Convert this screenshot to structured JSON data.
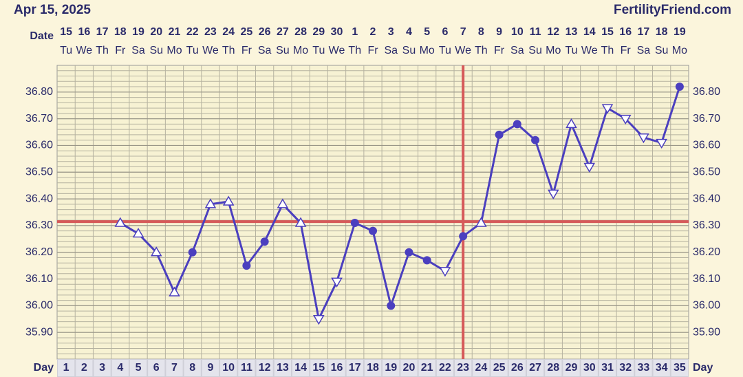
{
  "header": {
    "date": "Apr 15, 2025",
    "site": "FertilityFriend.com"
  },
  "chart_data": {
    "type": "line",
    "date_label": "Date",
    "day_label": "Day",
    "categories": [
      "1",
      "2",
      "3",
      "4",
      "5",
      "6",
      "7",
      "8",
      "9",
      "10",
      "11",
      "12",
      "13",
      "14",
      "15",
      "16",
      "17",
      "18",
      "19",
      "20",
      "21",
      "22",
      "23",
      "24",
      "25",
      "26",
      "27",
      "28",
      "29",
      "30",
      "31",
      "32",
      "33",
      "34",
      "35"
    ],
    "dates": [
      "15",
      "16",
      "17",
      "18",
      "19",
      "20",
      "21",
      "22",
      "23",
      "24",
      "25",
      "26",
      "27",
      "28",
      "29",
      "30",
      "1",
      "2",
      "3",
      "4",
      "5",
      "6",
      "7",
      "8",
      "9",
      "10",
      "11",
      "12",
      "13",
      "14",
      "15",
      "16",
      "17",
      "18",
      "19"
    ],
    "weekdays": [
      "Tu",
      "We",
      "Th",
      "Fr",
      "Sa",
      "Su",
      "Mo",
      "Tu",
      "We",
      "Th",
      "Fr",
      "Sa",
      "Su",
      "Mo",
      "Tu",
      "We",
      "Th",
      "Fr",
      "Sa",
      "Su",
      "Mo",
      "Tu",
      "We",
      "Th",
      "Fr",
      "Sa",
      "Su",
      "Mo",
      "Tu",
      "We",
      "Th",
      "Fr",
      "Sa",
      "Su",
      "Mo"
    ],
    "series": [
      {
        "color": "#4b3fbf",
        "values": [
          null,
          null,
          null,
          36.31,
          36.27,
          36.2,
          36.05,
          36.2,
          36.38,
          36.39,
          36.15,
          36.24,
          36.38,
          36.31,
          35.95,
          36.09,
          36.31,
          36.28,
          36.0,
          36.2,
          36.17,
          36.13,
          36.26,
          36.31,
          36.64,
          36.68,
          36.62,
          36.42,
          36.68,
          36.52,
          36.74,
          36.7,
          36.63,
          36.61,
          36.82
        ],
        "markers": [
          null,
          null,
          null,
          "up",
          "up",
          "up",
          "up",
          "dot",
          "up",
          "up",
          "dot",
          "dot",
          "up",
          "up",
          "down",
          "down",
          "dot",
          "dot",
          "dot",
          "dot",
          "dot",
          "down",
          "dot",
          "up",
          "dot",
          "dot",
          "dot",
          "down",
          "up",
          "down",
          "down",
          "down",
          "down",
          "down",
          "dot"
        ]
      }
    ],
    "coverline": 36.315,
    "coverline_color": "#d65a5a",
    "ovulation_day": "23",
    "ylim": [
      35.8,
      36.9
    ],
    "yticks": [
      {
        "value": 35.9,
        "label": "35.90"
      },
      {
        "value": 36.0,
        "label": "36.00"
      },
      {
        "value": 36.1,
        "label": "36.10"
      },
      {
        "value": 36.2,
        "label": "36.20"
      },
      {
        "value": 36.3,
        "label": "36.30"
      },
      {
        "value": 36.4,
        "label": "36.40"
      },
      {
        "value": 36.5,
        "label": "36.50"
      },
      {
        "value": 36.6,
        "label": "36.60"
      },
      {
        "value": 36.7,
        "label": "36.70"
      },
      {
        "value": 36.8,
        "label": "36.80"
      }
    ],
    "grid": true
  }
}
